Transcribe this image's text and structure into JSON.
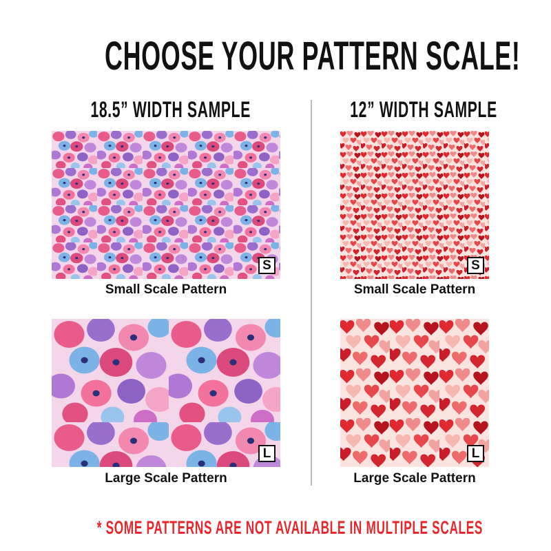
{
  "title": "CHOOSE YOUR PATTERN SCALE!",
  "columns": [
    {
      "heading": "18.5” WIDTH SAMPLE",
      "pattern": "watercolor-flowers",
      "samples": [
        {
          "label": "Small Scale Pattern",
          "badge": "S"
        },
        {
          "label": "Large Scale Pattern",
          "badge": "L"
        }
      ]
    },
    {
      "heading": "12” WIDTH SAMPLE",
      "pattern": "red-hearts",
      "samples": [
        {
          "label": "Small Scale Pattern",
          "badge": "S"
        },
        {
          "label": "Large Scale Pattern",
          "badge": "L"
        }
      ]
    }
  ],
  "footer": "* SOME PATTERNS ARE NOT AVAILABLE IN MULTIPLE SCALES",
  "colors": {
    "text": "#111111",
    "footer": "#e8262b",
    "divider": "#bbbbbb"
  }
}
